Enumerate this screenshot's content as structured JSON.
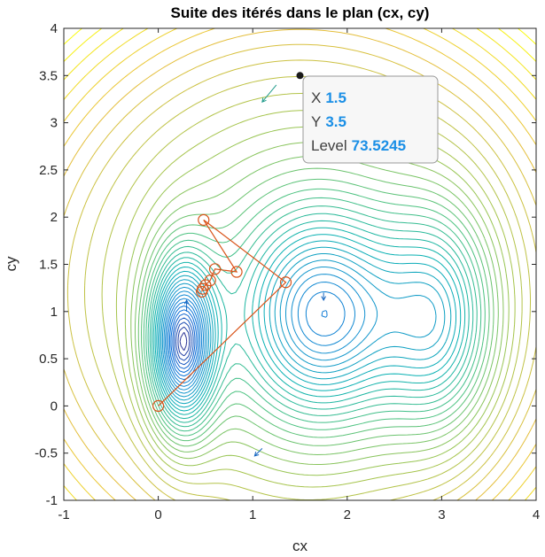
{
  "chart_data": {
    "type": "contour",
    "title": "Suite des itérés dans le plan (cx, cy)",
    "xlabel": "cx",
    "ylabel": "cy",
    "xlim": [
      -1,
      4
    ],
    "ylim": [
      -1,
      4
    ],
    "xticks": [
      -1,
      0,
      1,
      2,
      3,
      4
    ],
    "yticks": [
      -1,
      -0.5,
      0,
      0.5,
      1,
      1.5,
      2,
      2.5,
      3,
      3.5,
      4
    ],
    "grid": false,
    "colormap": "parula",
    "contour_levels": 40,
    "minima": [
      {
        "cx": 0.25,
        "cy": 0.65
      },
      {
        "cx": 1.75,
        "cy": 0.95
      },
      {
        "cx": 3.0,
        "cy": 0.9
      }
    ],
    "iterates": {
      "color": "#d95319",
      "marker": "circle",
      "points": [
        {
          "x": 0.0,
          "y": 0.0
        },
        {
          "x": 1.35,
          "y": 1.31
        },
        {
          "x": 0.48,
          "y": 1.97
        },
        {
          "x": 0.83,
          "y": 1.42
        },
        {
          "x": 0.6,
          "y": 1.45
        },
        {
          "x": 0.55,
          "y": 1.33
        },
        {
          "x": 0.5,
          "y": 1.28
        },
        {
          "x": 0.47,
          "y": 1.24
        },
        {
          "x": 0.46,
          "y": 1.21
        }
      ]
    },
    "datatip": {
      "x_name": "X",
      "x_value": "1.5",
      "y_name": "Y",
      "y_value": "3.5",
      "level_name": "Level",
      "level_value": "73.5245",
      "point": {
        "x": 1.5,
        "y": 3.5
      }
    }
  }
}
